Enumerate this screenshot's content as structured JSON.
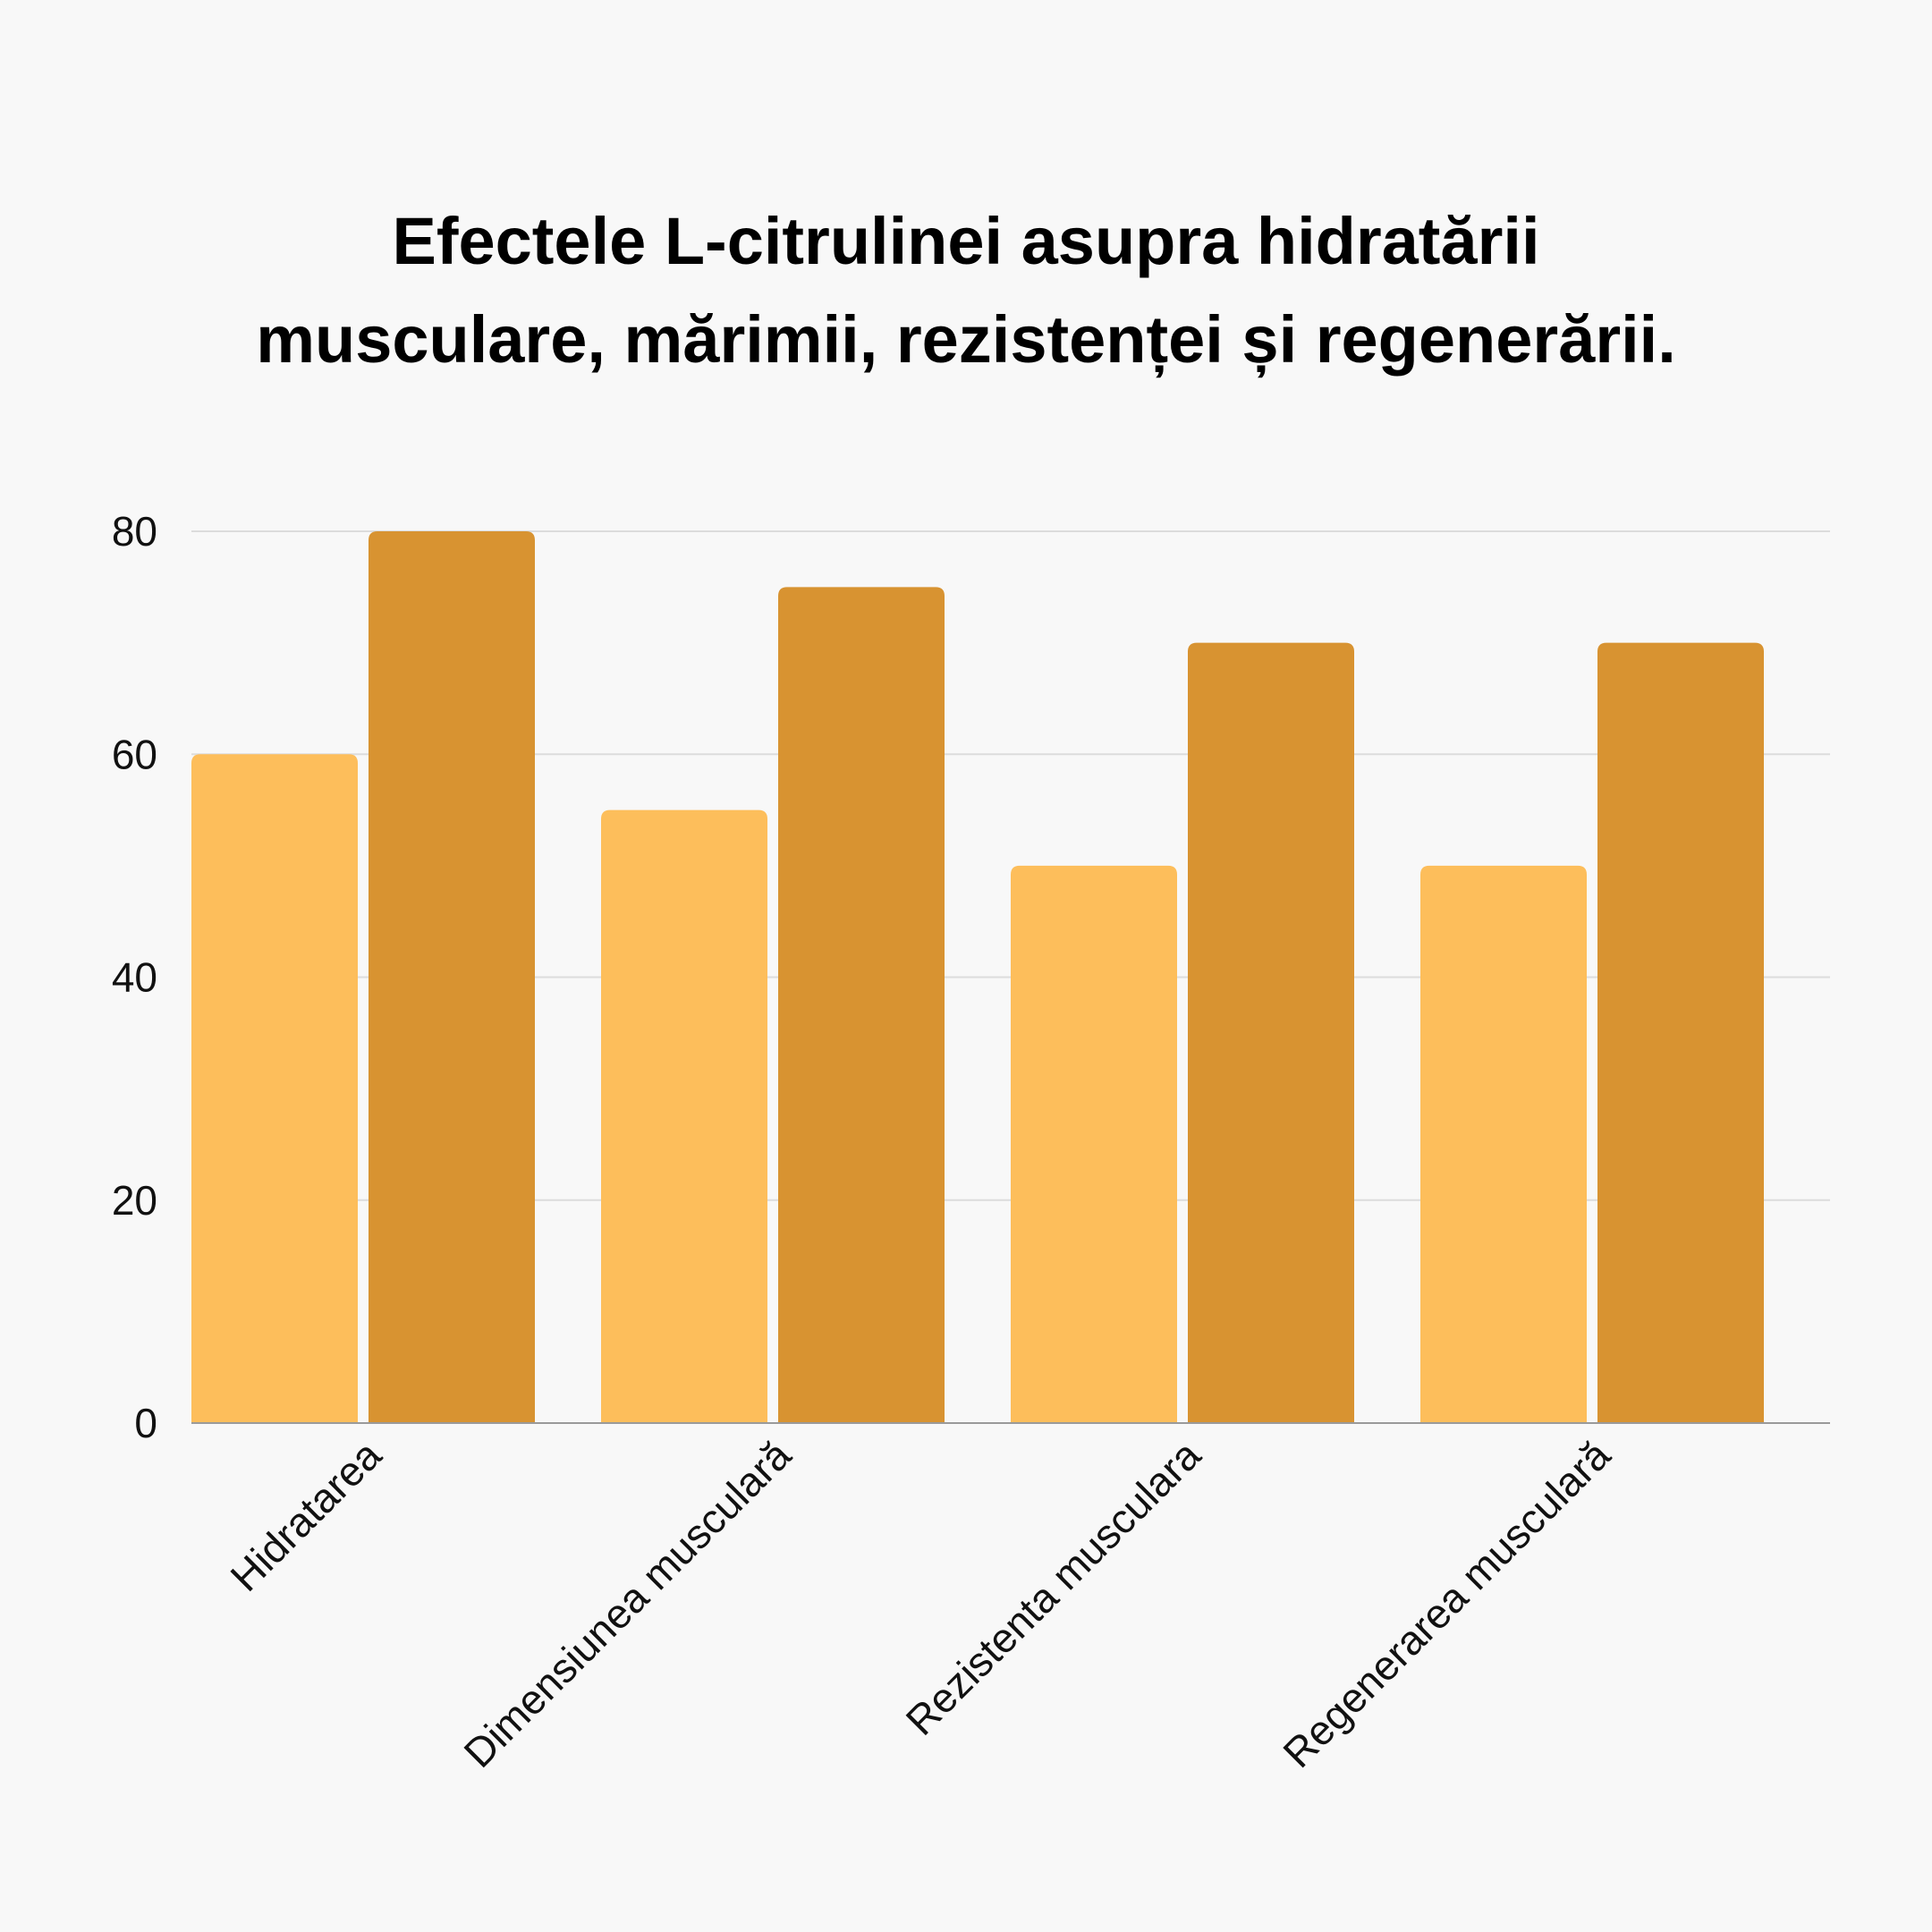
{
  "chart_data": {
    "type": "bar",
    "title_lines": [
      "Efectele L-citrulinei asupra hidratării",
      "musculare, mărimii, rezistenței și regenerării."
    ],
    "xlabel": "",
    "ylabel": "",
    "categories": [
      "Hidratarea",
      "Dimensiunea musculară",
      "Rezistenta musculara",
      "Regenerarea musculară"
    ],
    "series": [
      {
        "color": "#FDBE5B",
        "values": [
          60,
          55,
          50,
          50
        ]
      },
      {
        "color": "#D89331",
        "values": [
          80,
          75,
          70,
          70
        ]
      }
    ],
    "ylim": [
      0,
      80
    ],
    "yticks": [
      0,
      20,
      40,
      60,
      80
    ],
    "grid": true,
    "legend": "none"
  }
}
